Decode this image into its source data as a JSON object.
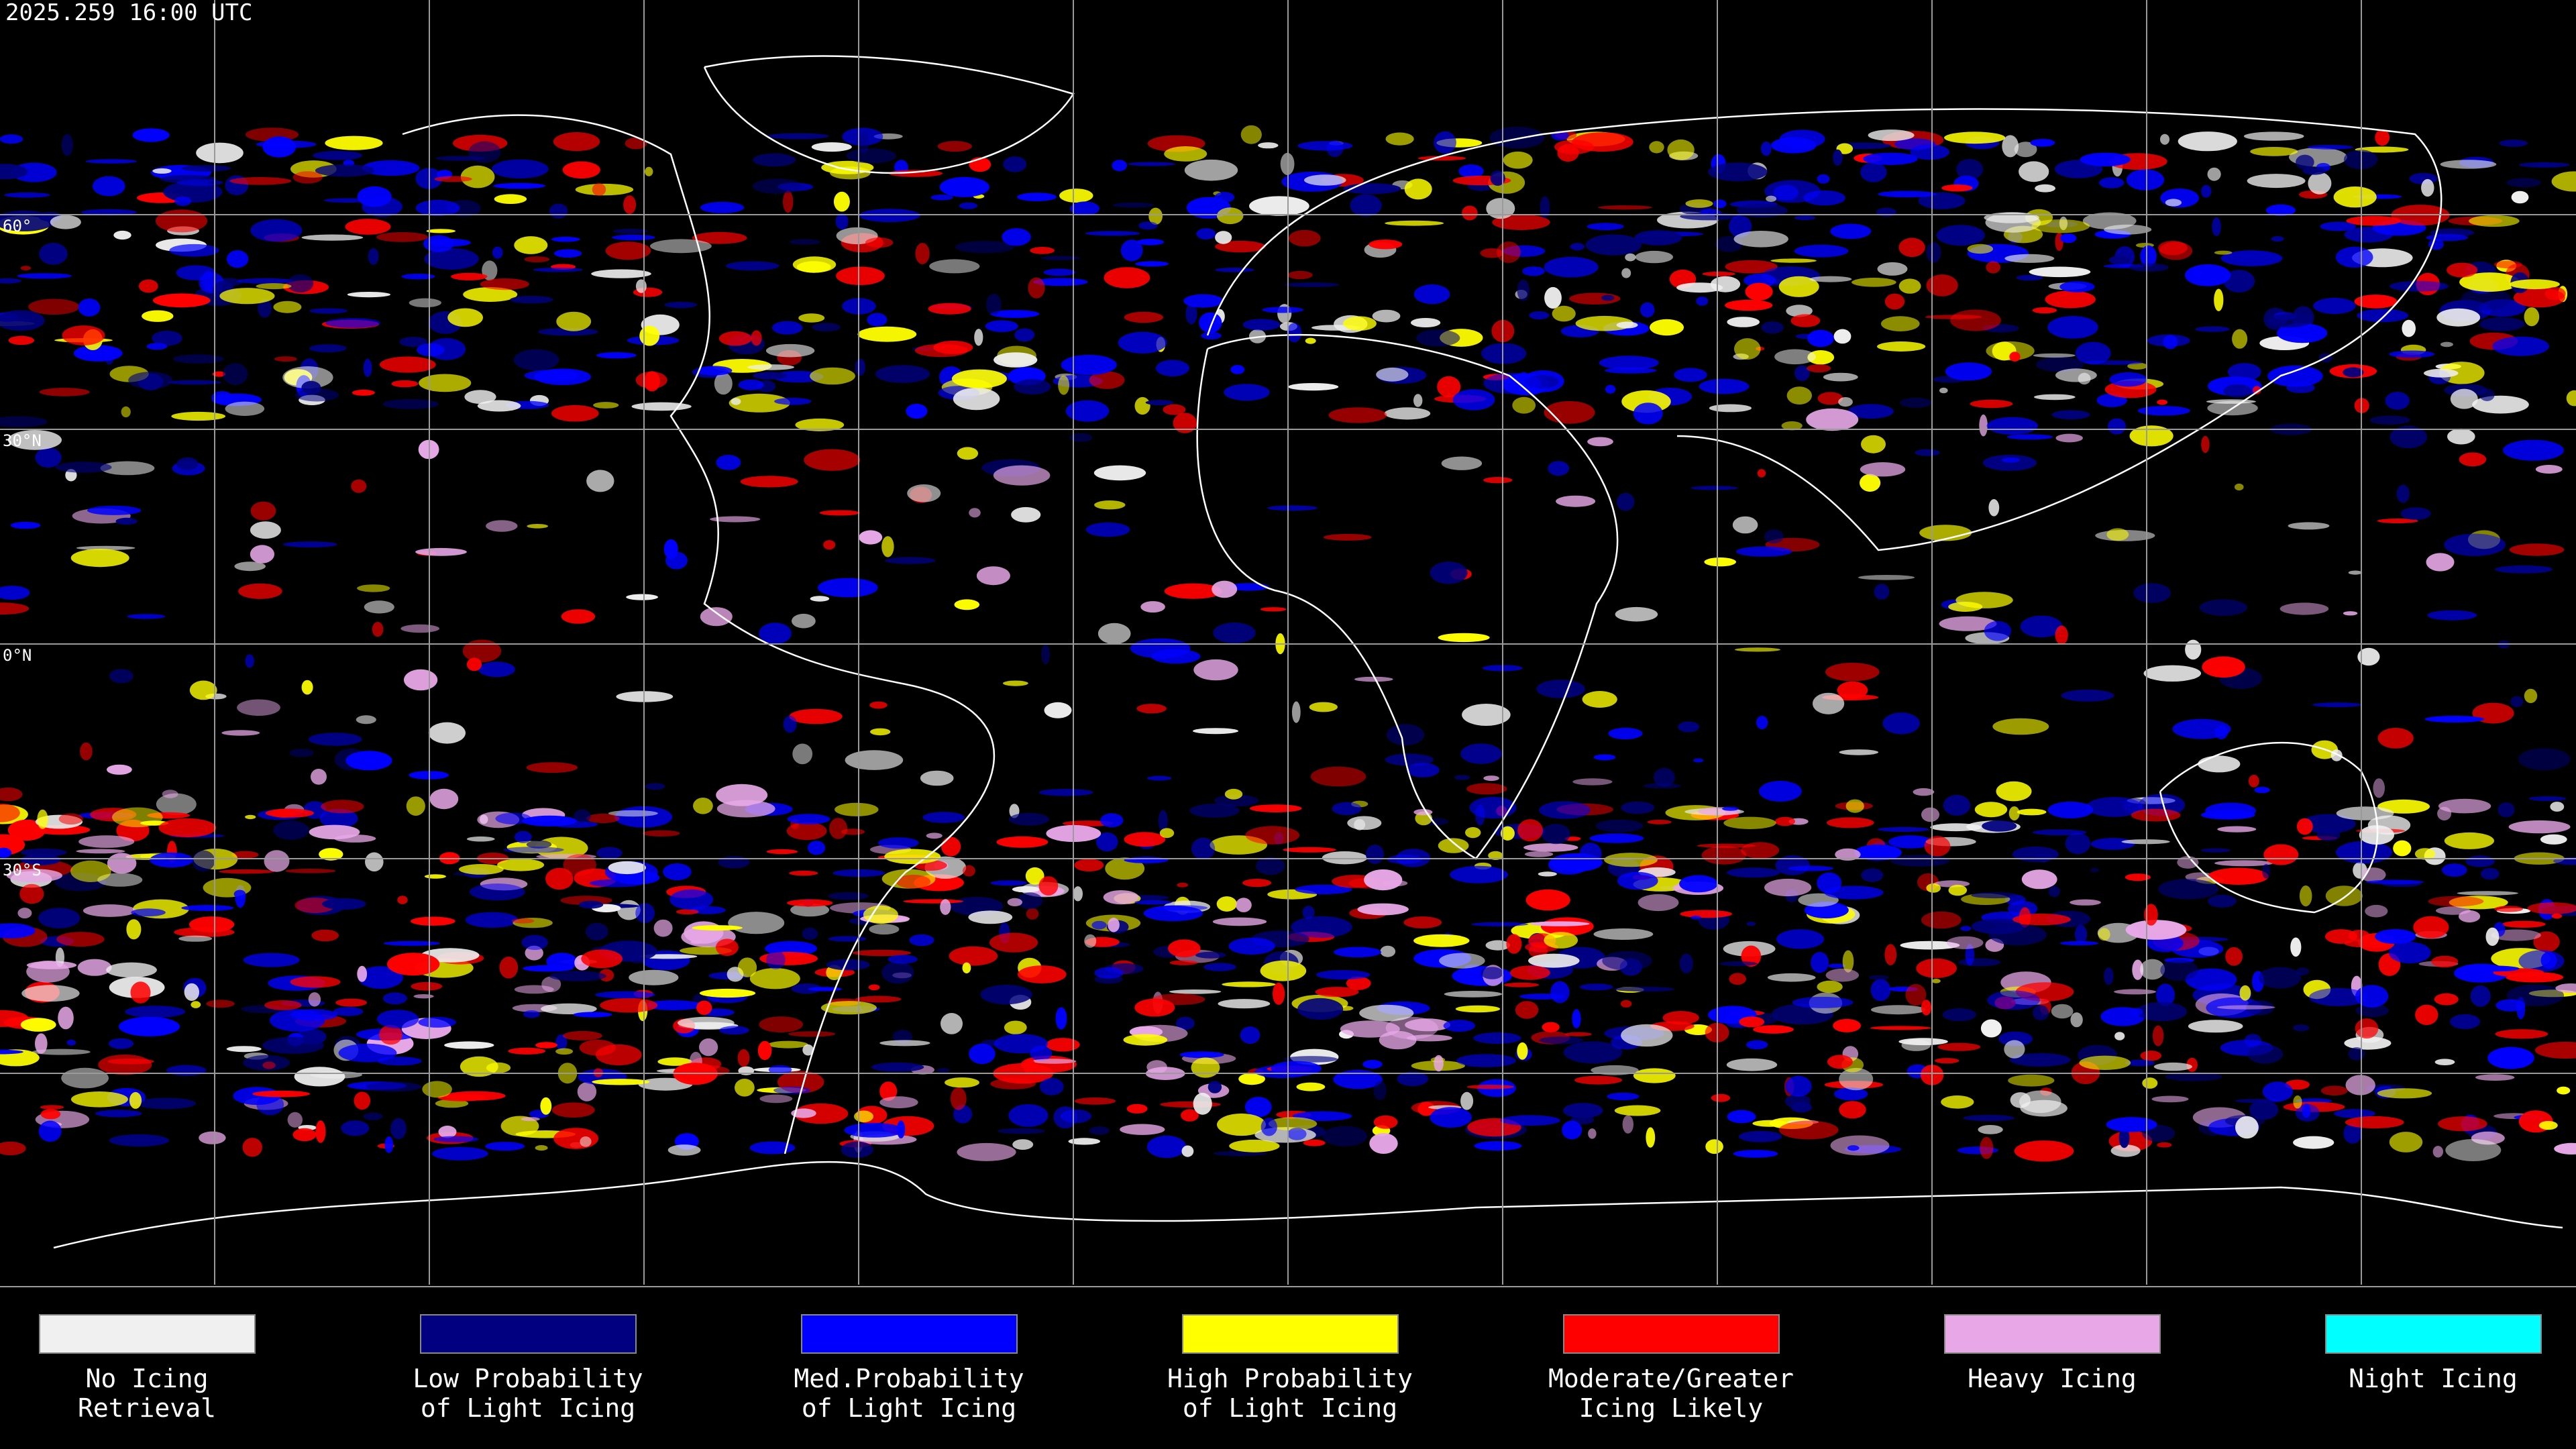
{
  "header": {
    "timestamp": "2025.259 16:00 UTC"
  },
  "map": {
    "lat_labels": [
      "60°",
      "30°N",
      "0°N",
      "30°S"
    ]
  },
  "legend": [
    {
      "lines": [
        "No Icing",
        "Retrieval"
      ],
      "color": "#f0f0f0"
    },
    {
      "lines": [
        "Low Probability",
        "of Light Icing"
      ],
      "color": "#000080"
    },
    {
      "lines": [
        "Med.Probability",
        "of Light Icing"
      ],
      "color": "#0000ff"
    },
    {
      "lines": [
        "High Probability",
        "of Light Icing"
      ],
      "color": "#ffff00"
    },
    {
      "lines": [
        "Moderate/Greater",
        "Icing Likely"
      ],
      "color": "#ff0000"
    },
    {
      "lines": [
        "Heavy Icing"
      ],
      "color": "#e8a8e8"
    },
    {
      "lines": [
        "Night Icing"
      ],
      "color": "#00ffff"
    }
  ]
}
